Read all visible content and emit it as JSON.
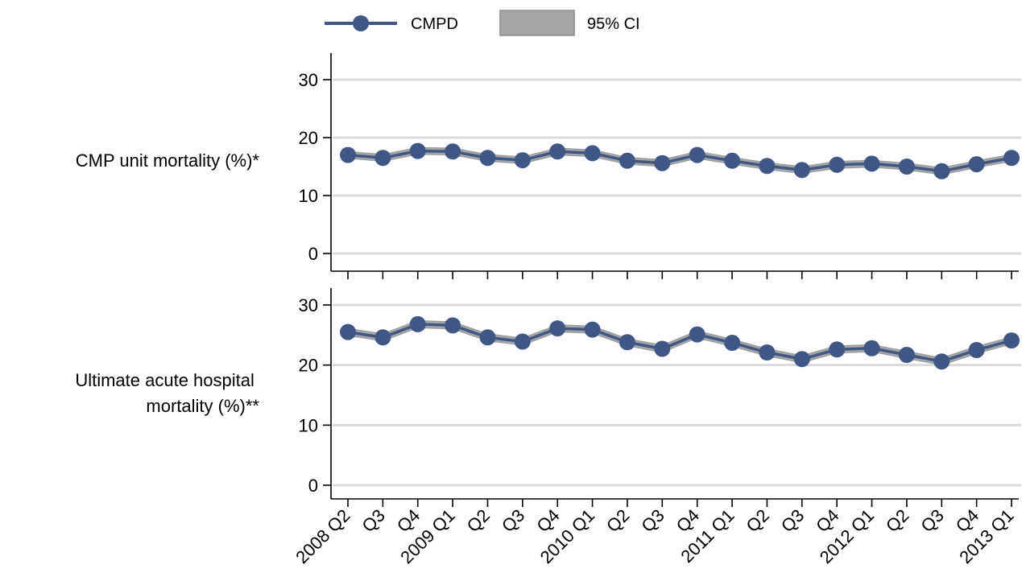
{
  "chart_data": {
    "type": "line",
    "legend": {
      "placement": "top",
      "entries": [
        {
          "label": "CMPD",
          "kind": "line-marker",
          "color": "#3e5785"
        },
        {
          "label": "95% CI",
          "kind": "band",
          "color": "#a6a6a6"
        }
      ]
    },
    "x_tick_labels": [
      "2008 Q2",
      "Q3",
      "Q4",
      "2009 Q1",
      "Q2",
      "Q3",
      "Q4",
      "2010 Q1",
      "Q2",
      "Q3",
      "Q4",
      "2011 Q1",
      "Q2",
      "Q3",
      "Q4",
      "2012 Q1",
      "Q2",
      "Q3",
      "Q4",
      "2013 Q1"
    ],
    "grid": true,
    "colors": {
      "series": "#3e5785",
      "band": "#a6a6a6",
      "grid": "#d9d9d9"
    },
    "panels": [
      {
        "label": "CMP unit mortality (%)*",
        "ylim": [
          0,
          35
        ],
        "yticks": [
          0,
          10,
          20,
          30
        ],
        "series": [
          {
            "name": "CMPD",
            "values": [
              17.0,
              16.5,
              17.7,
              17.6,
              16.5,
              16.1,
              17.6,
              17.3,
              16.0,
              15.6,
              17.0,
              16.0,
              15.1,
              14.4,
              15.3,
              15.5,
              15.0,
              14.2,
              15.4,
              16.5
            ],
            "ci_low": [
              16.4,
              15.9,
              17.1,
              17.0,
              15.9,
              15.5,
              17.0,
              16.7,
              15.4,
              15.0,
              16.4,
              15.4,
              14.5,
              13.8,
              14.7,
              14.9,
              14.4,
              13.6,
              14.8,
              15.9
            ],
            "ci_high": [
              17.6,
              17.1,
              18.3,
              18.2,
              17.1,
              16.7,
              18.2,
              17.9,
              16.6,
              16.2,
              17.6,
              16.6,
              15.7,
              15.0,
              15.9,
              16.1,
              15.6,
              14.8,
              16.0,
              17.1
            ]
          }
        ]
      },
      {
        "label": "Ultimate acute hospital mortality (%)**",
        "label_lines": [
          "Ultimate acute hospital",
          "mortality (%)**"
        ],
        "ylim": [
          -3,
          33
        ],
        "yticks": [
          0,
          10,
          20,
          30
        ],
        "series": [
          {
            "name": "CMPD",
            "values": [
              25.5,
              24.6,
              26.8,
              26.6,
              24.6,
              23.9,
              26.1,
              25.9,
              23.8,
              22.7,
              25.1,
              23.7,
              22.1,
              21.0,
              22.6,
              22.8,
              21.7,
              20.6,
              22.5,
              24.1
            ],
            "ci_low": [
              24.9,
              24.0,
              26.2,
              26.0,
              24.0,
              23.3,
              25.5,
              25.3,
              23.2,
              22.1,
              24.5,
              23.1,
              21.5,
              20.4,
              22.0,
              22.2,
              21.1,
              20.0,
              21.9,
              23.5
            ],
            "ci_high": [
              26.1,
              25.2,
              27.4,
              27.2,
              25.2,
              24.5,
              26.7,
              26.5,
              24.4,
              23.3,
              25.7,
              24.3,
              22.7,
              21.6,
              23.2,
              23.4,
              22.3,
              21.2,
              23.1,
              24.7
            ]
          }
        ]
      }
    ]
  }
}
